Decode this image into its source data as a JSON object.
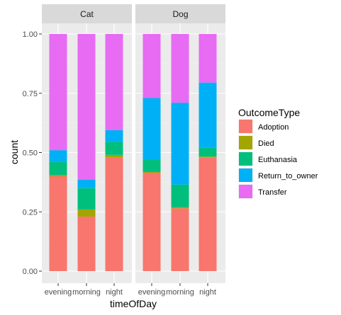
{
  "chart_data": {
    "type": "bar",
    "stacked": "fill",
    "xlabel": "timeOfDay",
    "ylabel": "count",
    "ylim": [
      0,
      1
    ],
    "yticks": [
      "0.00",
      "0.25",
      "0.50",
      "0.75",
      "1.00"
    ],
    "grid": true,
    "legend_title": "OutcomeType",
    "legend_position": "right",
    "categories": [
      "evening",
      "morning",
      "night"
    ],
    "series_colors": {
      "Adoption": "#F8766D",
      "Died": "#A3A500",
      "Euthanasia": "#00BF7D",
      "Return_to_owner": "#00B0F6",
      "Transfer": "#E76BF3"
    },
    "panels": [
      {
        "name": "Cat",
        "series": [
          {
            "name": "Adoption",
            "values": [
              0.4,
              0.23,
              0.48
            ]
          },
          {
            "name": "Died",
            "values": [
              0.005,
              0.03,
              0.01
            ]
          },
          {
            "name": "Euthanasia",
            "values": [
              0.055,
              0.09,
              0.055
            ]
          },
          {
            "name": "Return_to_owner",
            "values": [
              0.05,
              0.035,
              0.05
            ]
          },
          {
            "name": "Transfer",
            "values": [
              0.49,
              0.615,
              0.405
            ]
          }
        ]
      },
      {
        "name": "Dog",
        "series": [
          {
            "name": "Adoption",
            "values": [
              0.415,
              0.265,
              0.48
            ]
          },
          {
            "name": "Died",
            "values": [
              0.003,
              0.005,
              0.003
            ]
          },
          {
            "name": "Euthanasia",
            "values": [
              0.052,
              0.095,
              0.037
            ]
          },
          {
            "name": "Return_to_owner",
            "values": [
              0.26,
              0.345,
              0.275
            ]
          },
          {
            "name": "Transfer",
            "values": [
              0.27,
              0.29,
              0.205
            ]
          }
        ]
      }
    ]
  }
}
